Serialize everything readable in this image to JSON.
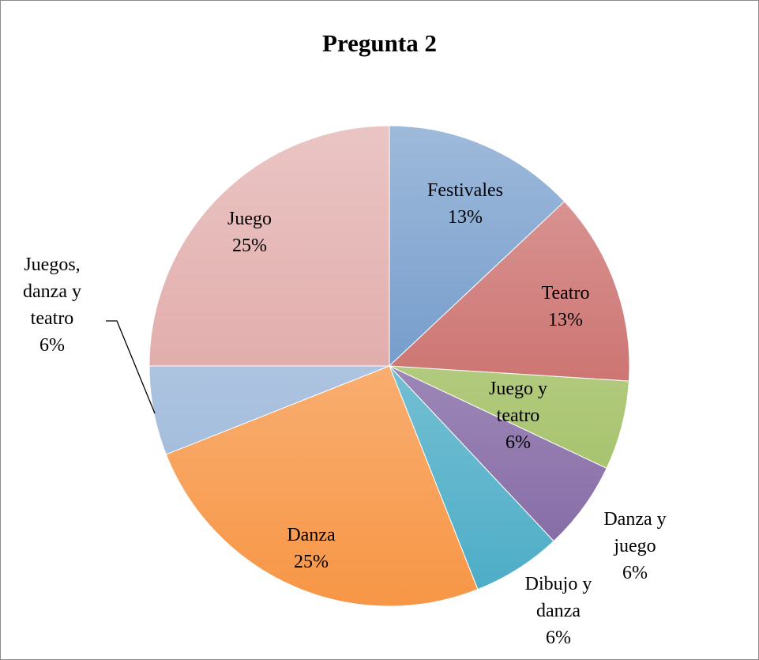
{
  "chart_data": {
    "type": "pie",
    "title": "Pregunta 2",
    "categories": [
      "Festivales",
      "Teatro",
      "Juego y teatro",
      "Danza y juego",
      "Dibujo y danza",
      "Danza",
      "Juegos, danza y teatro",
      "Juego"
    ],
    "values": [
      13,
      13,
      6,
      6,
      6,
      25,
      6,
      25
    ],
    "value_labels": [
      "13%",
      "13%",
      "6%",
      "6%",
      "6%",
      "25%",
      "6%",
      "25%"
    ],
    "colors": [
      "#4f81bd",
      "#c0504d",
      "#9bbb59",
      "#8064a2",
      "#4bacc6",
      "#f79646",
      "#95b3d7",
      "#d99694"
    ]
  }
}
